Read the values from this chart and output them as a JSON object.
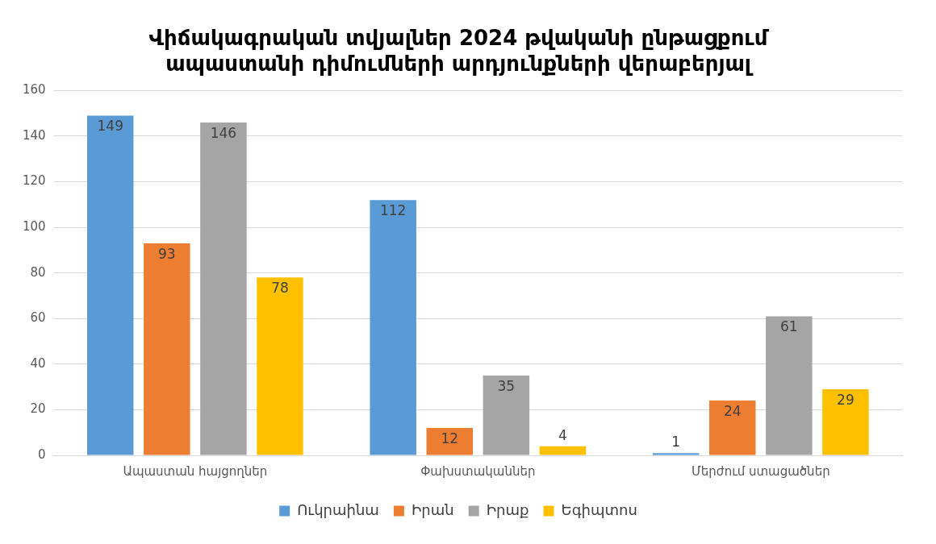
{
  "chart_data": {
    "type": "bar",
    "title": "Վիճակագրական տվյալներ 2024 թվականի ընթացքում ապաստանի դիմումների արդյունքների վերաբերյալ",
    "categories": [
      "Ապաստան հայցողներ",
      "Փախստականներ",
      "Մերժում ստացածներ"
    ],
    "series": [
      {
        "name": "Ուկրաինա",
        "color": "#5b9bd5",
        "values": [
          149,
          112,
          1
        ]
      },
      {
        "name": "Իրան",
        "color": "#ed7d31",
        "values": [
          93,
          12,
          24
        ]
      },
      {
        "name": "Իրաք",
        "color": "#a5a5a5",
        "values": [
          146,
          35,
          61
        ]
      },
      {
        "name": "Եգիպտոս",
        "color": "#ffc000",
        "values": [
          78,
          4,
          29
        ]
      }
    ],
    "ylim": [
      0,
      160
    ],
    "yticks": [
      0,
      20,
      40,
      60,
      80,
      100,
      120,
      140,
      160
    ],
    "grid": "y",
    "legend": "bottom",
    "data_labels": true
  }
}
